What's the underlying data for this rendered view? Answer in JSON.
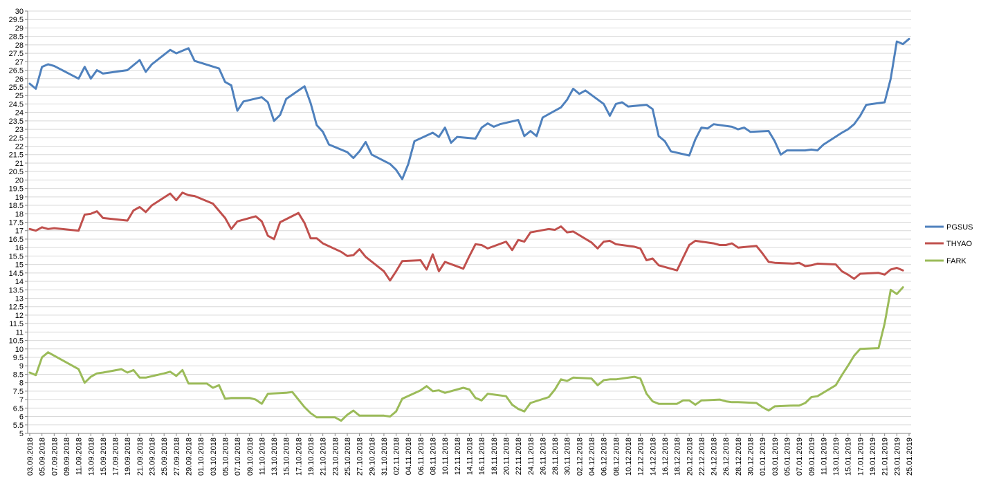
{
  "chart_data": {
    "type": "line",
    "title": "",
    "xlabel": "",
    "ylabel": "",
    "ylim": [
      5,
      30
    ],
    "ytick_step": 0.5,
    "grid": "horizontal",
    "legend_position": "right",
    "x_tick_labels": [
      "03.09.2018",
      "05.09.2018",
      "07.09.2018",
      "09.09.2018",
      "11.09.2018",
      "13.09.2018",
      "15.09.2018",
      "17.09.2018",
      "19.09.2018",
      "21.09.2018",
      "23.09.2018",
      "25.09.2018",
      "27.09.2018",
      "29.09.2018",
      "01.10.2018",
      "03.10.2018",
      "05.10.2018",
      "07.10.2018",
      "09.10.2018",
      "11.10.2018",
      "13.10.2018",
      "15.10.2018",
      "17.10.2018",
      "19.10.2018",
      "21.10.2018",
      "23.10.2018",
      "25.10.2018",
      "27.10.2018",
      "29.10.2018",
      "31.10.2018",
      "02.11.2018",
      "04.11.2018",
      "06.11.2018",
      "08.11.2018",
      "10.11.2018",
      "12.11.2018",
      "14.11.2018",
      "16.11.2018",
      "18.11.2018",
      "20.11.2018",
      "22.11.2018",
      "24.11.2018",
      "26.11.2018",
      "28.11.2018",
      "30.11.2018",
      "02.12.2018",
      "04.12.2018",
      "06.12.2018",
      "08.12.2018",
      "10.12.2018",
      "12.12.2018",
      "14.12.2018",
      "16.12.2018",
      "18.12.2018",
      "20.12.2018",
      "22.12.2018",
      "24.12.2018",
      "26.12.2018",
      "28.12.2018",
      "30.12.2018",
      "01.01.2019",
      "03.01.2019",
      "05.01.2019",
      "07.01.2019",
      "09.01.2019",
      "11.01.2019",
      "13.01.2019",
      "15.01.2019",
      "17.01.2019",
      "19.01.2019",
      "21.01.2019",
      "23.01.2019",
      "25.01.2019"
    ],
    "series": [
      {
        "name": "PGSUS",
        "color": "#4F81BD",
        "points": [
          [
            0,
            25.7
          ],
          [
            1,
            25.4
          ],
          [
            2,
            26.7
          ],
          [
            3,
            26.85
          ],
          [
            4,
            26.75
          ],
          [
            8,
            26.0
          ],
          [
            9,
            26.7
          ],
          [
            10,
            26.0
          ],
          [
            11,
            26.5
          ],
          [
            12,
            26.3
          ],
          [
            16,
            26.5
          ],
          [
            18,
            27.1
          ],
          [
            19,
            26.4
          ],
          [
            20,
            26.85
          ],
          [
            23,
            27.7
          ],
          [
            24,
            27.5
          ],
          [
            26,
            27.8
          ],
          [
            27,
            27.05
          ],
          [
            31,
            26.6
          ],
          [
            32,
            25.8
          ],
          [
            33,
            25.6
          ],
          [
            34,
            24.1
          ],
          [
            35,
            24.65
          ],
          [
            38,
            24.9
          ],
          [
            39,
            24.6
          ],
          [
            40,
            23.5
          ],
          [
            41,
            23.85
          ],
          [
            42,
            24.8
          ],
          [
            45,
            25.55
          ],
          [
            46,
            24.55
          ],
          [
            47,
            23.25
          ],
          [
            48,
            22.85
          ],
          [
            49,
            22.1
          ],
          [
            52,
            21.65
          ],
          [
            53,
            21.3
          ],
          [
            54,
            21.7
          ],
          [
            55,
            22.25
          ],
          [
            56,
            21.5
          ],
          [
            59,
            20.95
          ],
          [
            60,
            20.6
          ],
          [
            61,
            20.05
          ],
          [
            62,
            20.95
          ],
          [
            63,
            22.3
          ],
          [
            66,
            22.8
          ],
          [
            67,
            22.55
          ],
          [
            68,
            23.1
          ],
          [
            69,
            22.2
          ],
          [
            70,
            22.55
          ],
          [
            73,
            22.45
          ],
          [
            74,
            23.1
          ],
          [
            75,
            23.35
          ],
          [
            76,
            23.15
          ],
          [
            77,
            23.3
          ],
          [
            80,
            23.55
          ],
          [
            81,
            22.6
          ],
          [
            82,
            22.9
          ],
          [
            83,
            22.6
          ],
          [
            84,
            23.7
          ],
          [
            87,
            24.3
          ],
          [
            88,
            24.75
          ],
          [
            89,
            25.4
          ],
          [
            90,
            25.1
          ],
          [
            91,
            25.3
          ],
          [
            94,
            24.5
          ],
          [
            95,
            23.8
          ],
          [
            96,
            24.5
          ],
          [
            97,
            24.6
          ],
          [
            98,
            24.35
          ],
          [
            101,
            24.45
          ],
          [
            102,
            24.2
          ],
          [
            103,
            22.6
          ],
          [
            104,
            22.3
          ],
          [
            105,
            21.7
          ],
          [
            108,
            21.45
          ],
          [
            109,
            22.4
          ],
          [
            110,
            23.1
          ],
          [
            111,
            23.05
          ],
          [
            112,
            23.3
          ],
          [
            115,
            23.15
          ],
          [
            116,
            23.0
          ],
          [
            117,
            23.1
          ],
          [
            118,
            22.85
          ],
          [
            121,
            22.9
          ],
          [
            122,
            22.3
          ],
          [
            123,
            21.5
          ],
          [
            124,
            21.75
          ],
          [
            127,
            21.75
          ],
          [
            128,
            21.8
          ],
          [
            129,
            21.75
          ],
          [
            130,
            22.1
          ],
          [
            133,
            22.8
          ],
          [
            134,
            23.0
          ],
          [
            135,
            23.3
          ],
          [
            136,
            23.8
          ],
          [
            137,
            24.45
          ],
          [
            140,
            24.6
          ],
          [
            141,
            26.0
          ],
          [
            142,
            28.2
          ],
          [
            143,
            28.05
          ],
          [
            144,
            28.35
          ]
        ]
      },
      {
        "name": "THYAO",
        "color": "#C0504D",
        "points": [
          [
            0,
            17.1
          ],
          [
            1,
            17.0
          ],
          [
            2,
            17.2
          ],
          [
            3,
            17.1
          ],
          [
            4,
            17.15
          ],
          [
            8,
            17.0
          ],
          [
            9,
            17.95
          ],
          [
            10,
            18.0
          ],
          [
            11,
            18.15
          ],
          [
            12,
            17.75
          ],
          [
            16,
            17.6
          ],
          [
            17,
            18.2
          ],
          [
            18,
            18.4
          ],
          [
            19,
            18.1
          ],
          [
            20,
            18.5
          ],
          [
            23,
            19.2
          ],
          [
            24,
            18.8
          ],
          [
            25,
            19.25
          ],
          [
            26,
            19.1
          ],
          [
            27,
            19.05
          ],
          [
            30,
            18.6
          ],
          [
            32,
            17.75
          ],
          [
            33,
            17.1
          ],
          [
            34,
            17.55
          ],
          [
            37,
            17.85
          ],
          [
            38,
            17.55
          ],
          [
            39,
            16.7
          ],
          [
            40,
            16.5
          ],
          [
            41,
            17.5
          ],
          [
            44,
            18.05
          ],
          [
            45,
            17.45
          ],
          [
            46,
            16.55
          ],
          [
            47,
            16.55
          ],
          [
            48,
            16.25
          ],
          [
            51,
            15.75
          ],
          [
            52,
            15.5
          ],
          [
            53,
            15.55
          ],
          [
            54,
            15.9
          ],
          [
            55,
            15.45
          ],
          [
            58,
            14.6
          ],
          [
            59,
            14.05
          ],
          [
            60,
            14.6
          ],
          [
            61,
            15.2
          ],
          [
            64,
            15.25
          ],
          [
            65,
            14.7
          ],
          [
            66,
            15.6
          ],
          [
            67,
            14.6
          ],
          [
            68,
            15.15
          ],
          [
            71,
            14.75
          ],
          [
            72,
            15.5
          ],
          [
            73,
            16.2
          ],
          [
            74,
            16.15
          ],
          [
            75,
            15.95
          ],
          [
            78,
            16.35
          ],
          [
            79,
            15.85
          ],
          [
            80,
            16.45
          ],
          [
            81,
            16.35
          ],
          [
            82,
            16.9
          ],
          [
            85,
            17.1
          ],
          [
            86,
            17.05
          ],
          [
            87,
            17.25
          ],
          [
            88,
            16.9
          ],
          [
            89,
            16.95
          ],
          [
            92,
            16.3
          ],
          [
            93,
            15.95
          ],
          [
            94,
            16.35
          ],
          [
            95,
            16.4
          ],
          [
            96,
            16.2
          ],
          [
            99,
            16.05
          ],
          [
            100,
            15.95
          ],
          [
            101,
            15.25
          ],
          [
            102,
            15.35
          ],
          [
            103,
            14.95
          ],
          [
            106,
            14.65
          ],
          [
            107,
            15.4
          ],
          [
            108,
            16.15
          ],
          [
            109,
            16.4
          ],
          [
            112,
            16.25
          ],
          [
            113,
            16.15
          ],
          [
            114,
            16.15
          ],
          [
            115,
            16.25
          ],
          [
            116,
            16.0
          ],
          [
            119,
            16.1
          ],
          [
            120,
            15.65
          ],
          [
            121,
            15.15
          ],
          [
            122,
            15.1
          ],
          [
            125,
            15.05
          ],
          [
            126,
            15.1
          ],
          [
            127,
            14.9
          ],
          [
            128,
            14.95
          ],
          [
            129,
            15.05
          ],
          [
            132,
            15.0
          ],
          [
            133,
            14.6
          ],
          [
            134,
            14.4
          ],
          [
            135,
            14.15
          ],
          [
            136,
            14.45
          ],
          [
            139,
            14.5
          ],
          [
            140,
            14.4
          ],
          [
            141,
            14.7
          ],
          [
            142,
            14.8
          ],
          [
            143,
            14.65
          ]
        ]
      },
      {
        "name": "FARK",
        "color": "#9BBB59",
        "points": [
          [
            0,
            8.6
          ],
          [
            1,
            8.45
          ],
          [
            2,
            9.5
          ],
          [
            3,
            9.8
          ],
          [
            4,
            9.6
          ],
          [
            8,
            8.8
          ],
          [
            9,
            8.0
          ],
          [
            10,
            8.35
          ],
          [
            11,
            8.55
          ],
          [
            12,
            8.6
          ],
          [
            15,
            8.8
          ],
          [
            16,
            8.6
          ],
          [
            17,
            8.75
          ],
          [
            18,
            8.3
          ],
          [
            19,
            8.3
          ],
          [
            22,
            8.55
          ],
          [
            23,
            8.65
          ],
          [
            24,
            8.4
          ],
          [
            25,
            8.75
          ],
          [
            26,
            7.95
          ],
          [
            29,
            7.95
          ],
          [
            30,
            7.7
          ],
          [
            31,
            7.85
          ],
          [
            32,
            7.05
          ],
          [
            33,
            7.1
          ],
          [
            36,
            7.1
          ],
          [
            37,
            7.0
          ],
          [
            38,
            6.75
          ],
          [
            39,
            7.35
          ],
          [
            42,
            7.4
          ],
          [
            43,
            7.45
          ],
          [
            45,
            6.55
          ],
          [
            46,
            6.2
          ],
          [
            47,
            5.95
          ],
          [
            50,
            5.95
          ],
          [
            51,
            5.75
          ],
          [
            52,
            6.1
          ],
          [
            53,
            6.35
          ],
          [
            54,
            6.05
          ],
          [
            57,
            6.05
          ],
          [
            58,
            6.05
          ],
          [
            59,
            6.0
          ],
          [
            60,
            6.3
          ],
          [
            61,
            7.05
          ],
          [
            64,
            7.55
          ],
          [
            65,
            7.8
          ],
          [
            66,
            7.5
          ],
          [
            67,
            7.55
          ],
          [
            68,
            7.4
          ],
          [
            71,
            7.7
          ],
          [
            72,
            7.6
          ],
          [
            73,
            7.1
          ],
          [
            74,
            6.95
          ],
          [
            75,
            7.35
          ],
          [
            78,
            7.2
          ],
          [
            79,
            6.7
          ],
          [
            80,
            6.45
          ],
          [
            81,
            6.3
          ],
          [
            82,
            6.8
          ],
          [
            85,
            7.15
          ],
          [
            86,
            7.6
          ],
          [
            87,
            8.2
          ],
          [
            88,
            8.1
          ],
          [
            89,
            8.3
          ],
          [
            92,
            8.25
          ],
          [
            93,
            7.85
          ],
          [
            94,
            8.15
          ],
          [
            95,
            8.2
          ],
          [
            96,
            8.2
          ],
          [
            99,
            8.35
          ],
          [
            100,
            8.25
          ],
          [
            101,
            7.35
          ],
          [
            102,
            6.9
          ],
          [
            103,
            6.75
          ],
          [
            106,
            6.75
          ],
          [
            107,
            6.95
          ],
          [
            108,
            6.95
          ],
          [
            109,
            6.7
          ],
          [
            110,
            6.95
          ],
          [
            113,
            7.0
          ],
          [
            114,
            6.9
          ],
          [
            115,
            6.85
          ],
          [
            116,
            6.85
          ],
          [
            119,
            6.8
          ],
          [
            120,
            6.55
          ],
          [
            121,
            6.35
          ],
          [
            122,
            6.6
          ],
          [
            125,
            6.65
          ],
          [
            126,
            6.65
          ],
          [
            127,
            6.8
          ],
          [
            128,
            7.15
          ],
          [
            129,
            7.2
          ],
          [
            132,
            7.85
          ],
          [
            133,
            8.45
          ],
          [
            134,
            9.0
          ],
          [
            135,
            9.6
          ],
          [
            136,
            10.0
          ],
          [
            139,
            10.05
          ],
          [
            140,
            11.5
          ],
          [
            141,
            13.5
          ],
          [
            142,
            13.25
          ],
          [
            143,
            13.65
          ]
        ]
      }
    ]
  }
}
